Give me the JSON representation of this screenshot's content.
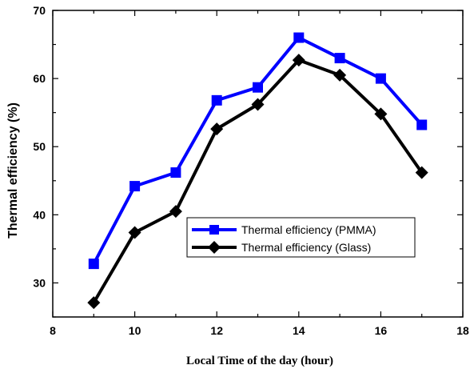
{
  "chart_data": {
    "type": "line",
    "xlabel": "Local Time of the day (hour)",
    "ylabel": "Thermal efficiency (%)",
    "xlim": [
      8,
      18
    ],
    "ylim": [
      25,
      70
    ],
    "x_ticks": [
      8,
      10,
      12,
      14,
      16,
      18
    ],
    "y_ticks": [
      30,
      40,
      50,
      60,
      70
    ],
    "grid": false,
    "legend_position": "center-right",
    "x": [
      9,
      10,
      11,
      12,
      13,
      14,
      15,
      16,
      17
    ],
    "series": [
      {
        "name": "Thermal efficiency (PMMA)",
        "color": "#0000ff",
        "marker": "square",
        "values": [
          32.8,
          44.2,
          46.2,
          56.8,
          58.7,
          66.0,
          63.0,
          60.0,
          53.2
        ]
      },
      {
        "name": "Thermal efficiency (Glass)",
        "color": "#000000",
        "marker": "diamond",
        "values": [
          27.1,
          37.4,
          40.5,
          52.6,
          56.2,
          62.7,
          60.5,
          54.8,
          46.2
        ]
      }
    ]
  }
}
